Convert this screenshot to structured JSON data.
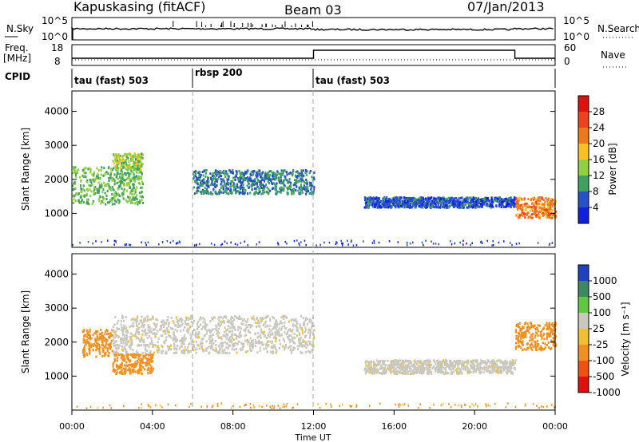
{
  "header": {
    "station": "Kapuskasing (fitACF)",
    "beam": "Beam 03",
    "date": "07/Jan/2013"
  },
  "noise_panel": {
    "left_label": "N.Sky",
    "right_label": "N.Search",
    "left_ticks": [
      "10^5",
      "10^0"
    ],
    "right_ticks": [
      "10^5",
      "10^0"
    ]
  },
  "freq_panel": {
    "left_label_1": "Freq.",
    "left_label_2": "[MHz]",
    "right_label": "Nave",
    "left_ticks": [
      "18",
      "8"
    ],
    "right_ticks": [
      "60",
      "0"
    ]
  },
  "cpid_panel": {
    "label": "CPID",
    "segments": [
      {
        "label": "tau (fast) 503",
        "start_hour": 0,
        "end_hour": 6
      },
      {
        "label": "rbsp 200",
        "start_hour": 6,
        "end_hour": 12
      },
      {
        "label": "tau (fast) 503",
        "start_hour": 12,
        "end_hour": 24
      }
    ]
  },
  "power_panel": {
    "ylabel": "Slant Range [km]",
    "yticks": [
      "4000",
      "3000",
      "2000",
      "1000"
    ],
    "colorbar_label": "Power [dB]",
    "colorbar_ticks": [
      "28",
      "24",
      "20",
      "16",
      "12",
      "8",
      "4"
    ],
    "colorbar_colors": [
      "#e01010",
      "#f04020",
      "#f07818",
      "#f8c020",
      "#90d040",
      "#40a060",
      "#2850c8",
      "#1020e0"
    ]
  },
  "velocity_panel": {
    "ylabel": "Slant Range [km]",
    "yticks": [
      "4000",
      "3000",
      "2000",
      "1000"
    ],
    "colorbar_label": "Velocity [m s⁻¹]",
    "colorbar_ticks": [
      "1000",
      "500",
      "100",
      "25",
      "-25",
      "-100",
      "-500",
      "-1000"
    ],
    "colorbar_colors": [
      "#2040c0",
      "#3c8860",
      "#60c840",
      "#c8c8c0",
      "#f0c030",
      "#f09020",
      "#f05010",
      "#e01010"
    ]
  },
  "x_axis": {
    "label": "Time UT",
    "ticks": [
      "00:00",
      "04:00",
      "08:00",
      "12:00",
      "16:00",
      "20:00",
      "00:00"
    ]
  },
  "chart_data": [
    {
      "type": "heatmap",
      "name": "power",
      "x": [
        0,
        24
      ],
      "ylim": [
        0,
        4600
      ],
      "ylabel": "Slant Range [km]",
      "xlabel": "Time UT",
      "colorbar_label": "Power [dB]",
      "colorbar_range": [
        0,
        32
      ],
      "echo_bands": [
        {
          "t_start": 0.0,
          "t_end": 3.5,
          "range_km": [
            1300,
            2400
          ],
          "power_db": 12
        },
        {
          "t_start": 2.0,
          "t_end": 3.5,
          "range_km": [
            2300,
            2800
          ],
          "power_db": 14
        },
        {
          "t_start": 6.0,
          "t_end": 12.0,
          "range_km": [
            1600,
            2300
          ],
          "power_db": 8
        },
        {
          "t_start": 14.5,
          "t_end": 22.0,
          "range_km": [
            1200,
            1500
          ],
          "power_db": 6
        },
        {
          "t_start": 22.0,
          "t_end": 24.0,
          "range_km": [
            900,
            1500
          ],
          "power_db": 22
        }
      ]
    },
    {
      "type": "heatmap",
      "name": "velocity",
      "x": [
        0,
        24
      ],
      "ylim": [
        0,
        4600
      ],
      "ylabel": "Slant Range [km]",
      "xlabel": "Time UT",
      "colorbar_label": "Velocity [m s⁻¹]",
      "colorbar_range": [
        -1000,
        1000
      ],
      "echo_bands": [
        {
          "t_start": 0.5,
          "t_end": 2.0,
          "range_km": [
            1600,
            2400
          ],
          "velocity": -100
        },
        {
          "t_start": 2.0,
          "t_end": 4.0,
          "range_km": [
            1100,
            1700
          ],
          "velocity": -200
        },
        {
          "t_start": 2.0,
          "t_end": 12.0,
          "range_km": [
            1700,
            2800
          ],
          "velocity": 0
        },
        {
          "t_start": 14.5,
          "t_end": 22.0,
          "range_km": [
            1100,
            1500
          ],
          "velocity": 0
        },
        {
          "t_start": 22.0,
          "t_end": 24.0,
          "range_km": [
            1800,
            2600
          ],
          "velocity": -100
        }
      ]
    }
  ]
}
